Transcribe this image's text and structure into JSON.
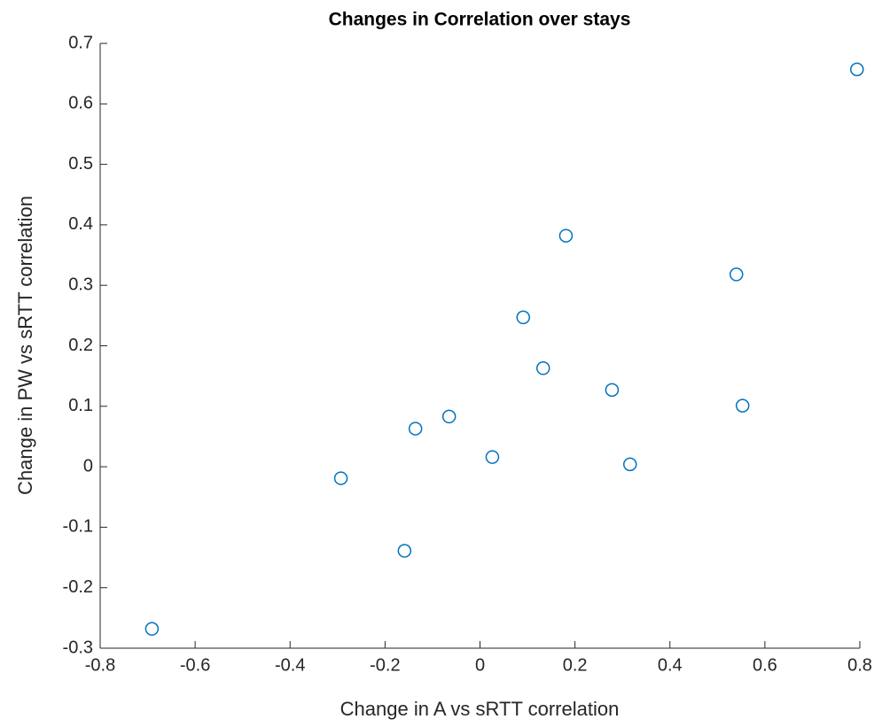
{
  "chart_data": {
    "type": "scatter",
    "title": "Changes in Correlation over stays",
    "xlabel": "Change in A vs sRTT correlation",
    "ylabel": "Change in PW vs sRTT correlation",
    "color": "#0072bd",
    "x": [
      -0.691,
      -0.293,
      -0.159,
      -0.136,
      -0.065,
      0.026,
      0.091,
      0.133,
      0.181,
      0.278,
      0.316,
      0.54,
      0.553,
      0.794
    ],
    "values": [
      -0.268,
      -0.019,
      -0.139,
      0.063,
      0.083,
      0.016,
      0.247,
      0.163,
      0.382,
      0.127,
      0.004,
      0.318,
      0.101,
      0.657
    ],
    "xlim": [
      -0.8,
      0.8
    ],
    "xticks": [
      -0.8,
      -0.6,
      -0.4,
      -0.2,
      0,
      0.2,
      0.4,
      0.6,
      0.8
    ],
    "ylim": [
      -0.3,
      0.7
    ],
    "yticks": [
      -0.3,
      -0.2,
      -0.1,
      0,
      0.1,
      0.2,
      0.3,
      0.4,
      0.5,
      0.6,
      0.7
    ],
    "grid": false
  }
}
